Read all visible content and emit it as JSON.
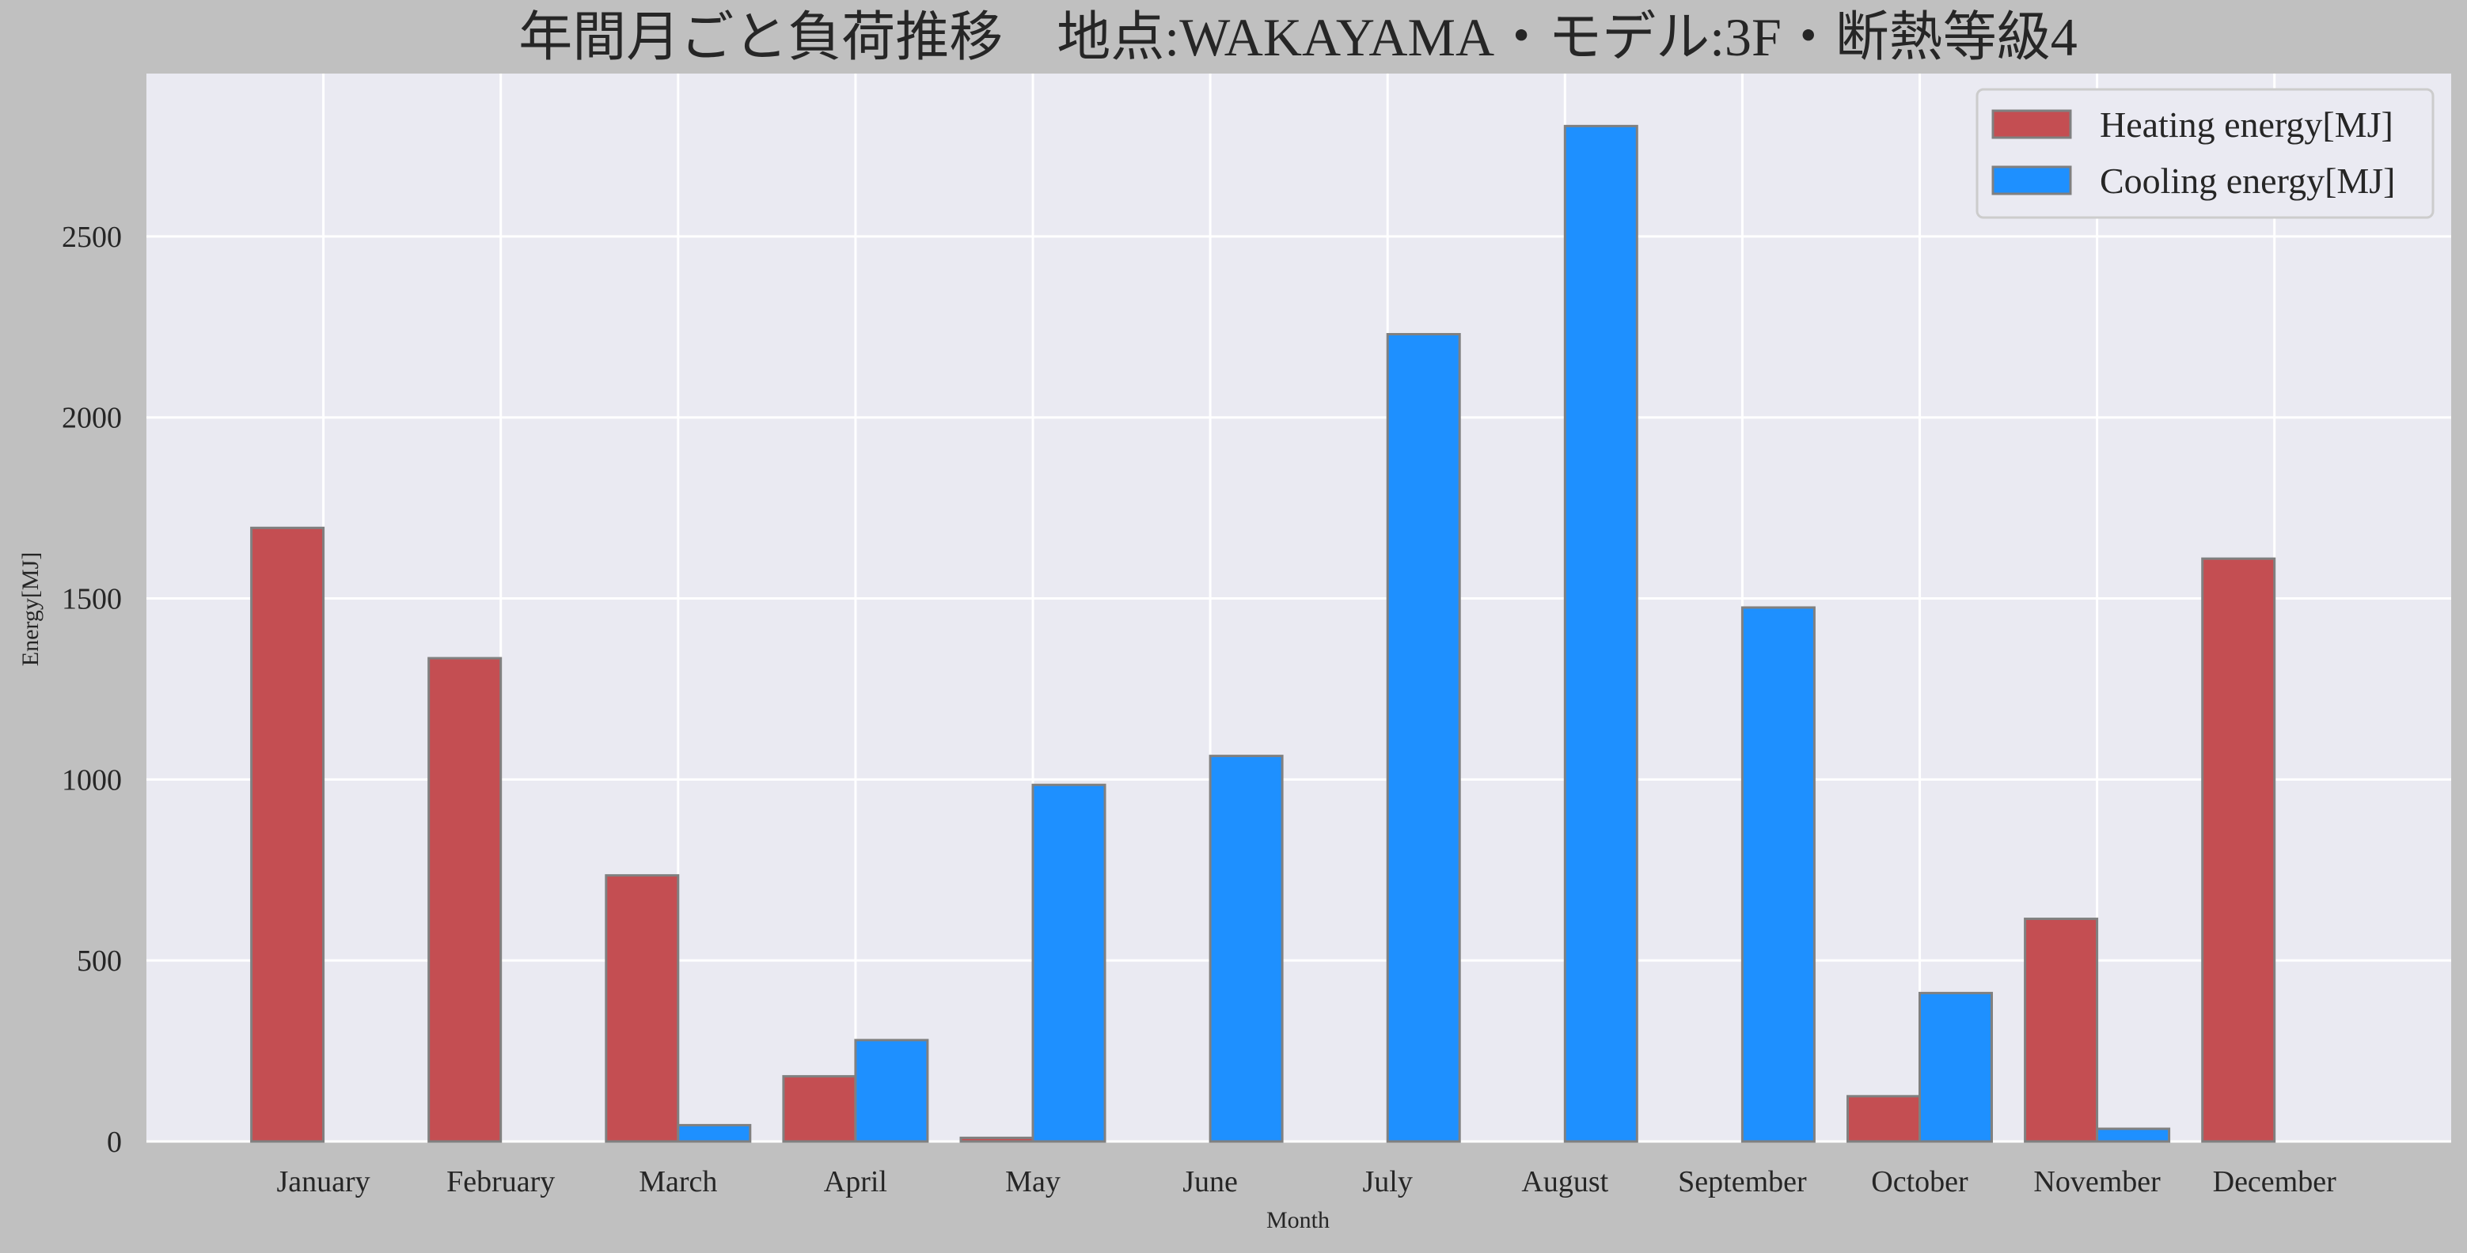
{
  "chart_data": {
    "type": "bar",
    "title": "年間月ごと負荷推移　地点:WAKAYAMA・モデル:3F・断熱等級4",
    "xlabel": "Month",
    "ylabel": "Energy[MJ]",
    "categories": [
      "January",
      "February",
      "March",
      "April",
      "May",
      "June",
      "July",
      "August",
      "September",
      "October",
      "November",
      "December"
    ],
    "series": [
      {
        "name": "Heating energy[MJ]",
        "color": "#c44e52",
        "values": [
          1695,
          1335,
          735,
          180,
          10,
          0,
          0,
          0,
          0,
          125,
          615,
          1610
        ]
      },
      {
        "name": "Cooling energy[MJ]",
        "color": "#1e90ff",
        "values": [
          0,
          0,
          45,
          280,
          985,
          1065,
          2230,
          2805,
          1475,
          410,
          35,
          0
        ]
      }
    ],
    "ylim": [
      0,
      2950
    ],
    "yticks": [
      0,
      500,
      1000,
      1500,
      2000,
      2500
    ],
    "grid": true,
    "legend_position": "top-right",
    "background_color": "#eaeaf2",
    "figure_background": "#c0c0c0",
    "bar_edge_color": "#808080"
  }
}
